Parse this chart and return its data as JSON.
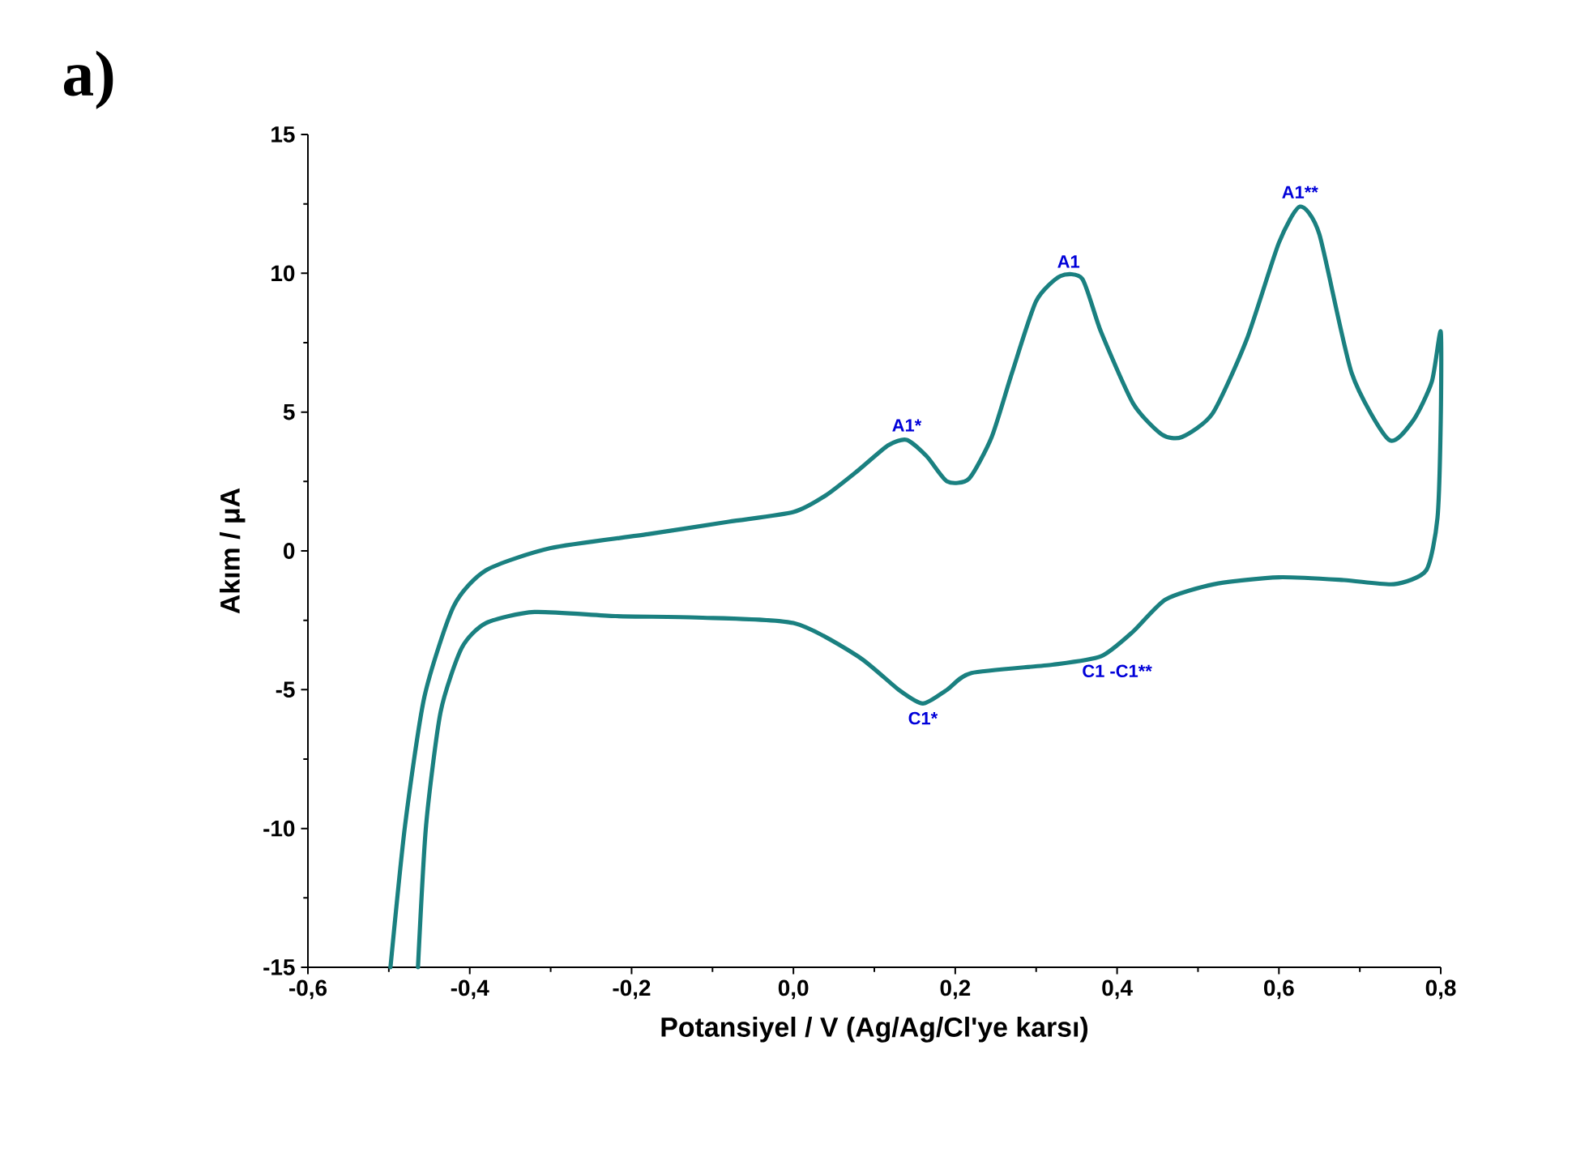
{
  "chart_data": {
    "type": "line",
    "xlabel": "Potansiyel / V (Ag/Ag/Cl'ye karsı)",
    "ylabel": "Akım / μA",
    "xlim": [
      -0.6,
      0.8
    ],
    "ylim": [
      -15,
      15
    ],
    "xticks": [
      {
        "value": -0.6,
        "label": "-0,6"
      },
      {
        "value": -0.4,
        "label": "-0,4"
      },
      {
        "value": -0.2,
        "label": "-0,2"
      },
      {
        "value": 0,
        "label": "0,0"
      },
      {
        "value": 0.2,
        "label": "0,2"
      },
      {
        "value": 0.4,
        "label": "0,4"
      },
      {
        "value": 0.6,
        "label": "0,6"
      },
      {
        "value": 0.8,
        "label": "0,8"
      }
    ],
    "yticks": [
      -15,
      -10,
      -5,
      0,
      5,
      10,
      15
    ],
    "grid": false,
    "marker": "none",
    "line_style": "solid",
    "annotations": [
      "a)",
      {
        "text": "A1*",
        "x": 0.14,
        "y": 4.0
      },
      {
        "text": "A1",
        "x": 0.34,
        "y": 9.9
      },
      {
        "text": "A1**",
        "x": 0.626,
        "y": 12.4
      },
      {
        "text": "C1*",
        "x": 0.16,
        "y": -5.5
      },
      {
        "text": "C1 -C1**",
        "x": 0.4,
        "y": -3.8
      }
    ],
    "series": [
      {
        "color": "#1a8080",
        "x": [
          -0.498,
          -0.48,
          -0.456,
          -0.42,
          -0.38,
          -0.3,
          -0.18,
          -0.08,
          0.0,
          0.04,
          0.08,
          0.117,
          0.14,
          0.165,
          0.19,
          0.217,
          0.245,
          0.27,
          0.3,
          0.33,
          0.357,
          0.38,
          0.42,
          0.455,
          0.48,
          0.518,
          0.56,
          0.6,
          0.626,
          0.65,
          0.69,
          0.736,
          0.766,
          0.789,
          0.8,
          0.8,
          0.796,
          0.782,
          0.742,
          0.68,
          0.6,
          0.52,
          0.46,
          0.42,
          0.38,
          0.32,
          0.22,
          0.19,
          0.16,
          0.13,
          0.08,
          0.0,
          -0.12,
          -0.22,
          -0.32,
          -0.38,
          -0.41,
          -0.436,
          -0.454,
          -0.464
        ],
        "values": [
          -15,
          -9.9,
          -5.25,
          -2.0,
          -0.7,
          0.1,
          0.6,
          1.05,
          1.4,
          2.0,
          2.9,
          3.8,
          4.0,
          3.4,
          2.5,
          2.6,
          4.1,
          6.4,
          9.0,
          9.9,
          9.8,
          7.9,
          5.3,
          4.2,
          4.1,
          4.95,
          7.6,
          11.1,
          12.4,
          11.4,
          6.4,
          4.0,
          4.7,
          6.1,
          7.9,
          4.7,
          1.2,
          -0.7,
          -1.2,
          -1.05,
          -0.95,
          -1.2,
          -1.75,
          -2.9,
          -3.8,
          -4.1,
          -4.4,
          -5.0,
          -5.5,
          -5.0,
          -3.8,
          -2.6,
          -2.4,
          -2.35,
          -2.2,
          -2.6,
          -3.5,
          -5.8,
          -9.9,
          -15
        ]
      }
    ]
  }
}
